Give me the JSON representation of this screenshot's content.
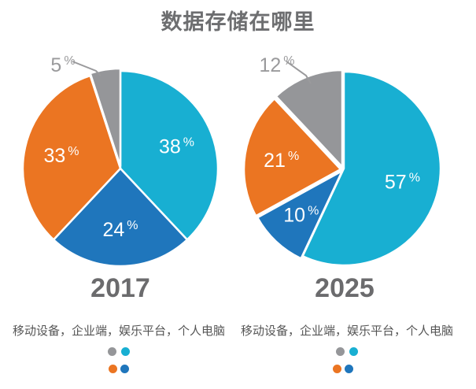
{
  "title": "数据存储在哪里",
  "colors": {
    "mobile": "#18afd2",
    "enterprise": "#1f76bc",
    "entertainment": "#eb7522",
    "pc": "#959699"
  },
  "legend_text": "移动设备，企业端，娱乐平台，个人电脑",
  "chart_data": [
    {
      "type": "pie",
      "year": "2017",
      "slices": [
        {
          "value": 38,
          "label": "38%",
          "color": "#18afd2"
        },
        {
          "value": 24,
          "label": "24%",
          "color": "#1f76bc"
        },
        {
          "value": 33,
          "label": "33%",
          "color": "#eb7522"
        },
        {
          "value": 5,
          "label": "5%",
          "color": "#959699"
        }
      ]
    },
    {
      "type": "pie",
      "year": "2025",
      "slices": [
        {
          "value": 57,
          "label": "57%",
          "color": "#18afd2"
        },
        {
          "value": 10,
          "label": "10%",
          "color": "#1f76bc"
        },
        {
          "value": 21,
          "label": "21%",
          "color": "#eb7522"
        },
        {
          "value": 12,
          "label": "12%",
          "color": "#959699"
        }
      ]
    }
  ]
}
